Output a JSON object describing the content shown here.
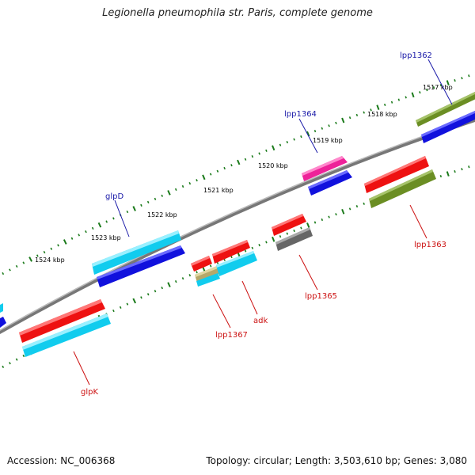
{
  "title": "Legionella pneumophila str. Paris, complete genome",
  "footer": {
    "accession": "Accession: NC_006368",
    "summary": "Topology: circular; Length: 3,503,610 bp; Genes: 3,080"
  },
  "colors": {
    "backbone": "#888888",
    "tick": "#1a7a1a",
    "label_forward": "#1a1aa8",
    "label_reverse": "#cc1111"
  },
  "kbp_labels": [
    "1517 kbp",
    "1518 kbp",
    "1519 kbp",
    "1520 kbp",
    "1521 kbp",
    "1522 kbp",
    "1523 kbp",
    "1524 kbp"
  ],
  "gene_labels": {
    "lpp1362": "lpp1362",
    "lpp1364": "lpp1364",
    "glpD": "glpD",
    "lpp1363": "lpp1363",
    "lpp1365": "lpp1365",
    "adk": "adk",
    "lpp1367": "lpp1367",
    "glpK": "glpK"
  },
  "feature_colors": {
    "cds_red": "#ee1111",
    "cds_blue": "#1111dd",
    "cds_cyan": "#11ccee",
    "cds_olive": "#6b8e23",
    "cds_pink": "#ee2299",
    "cds_gray": "#666666",
    "cds_tan": "#b5a86a"
  }
}
